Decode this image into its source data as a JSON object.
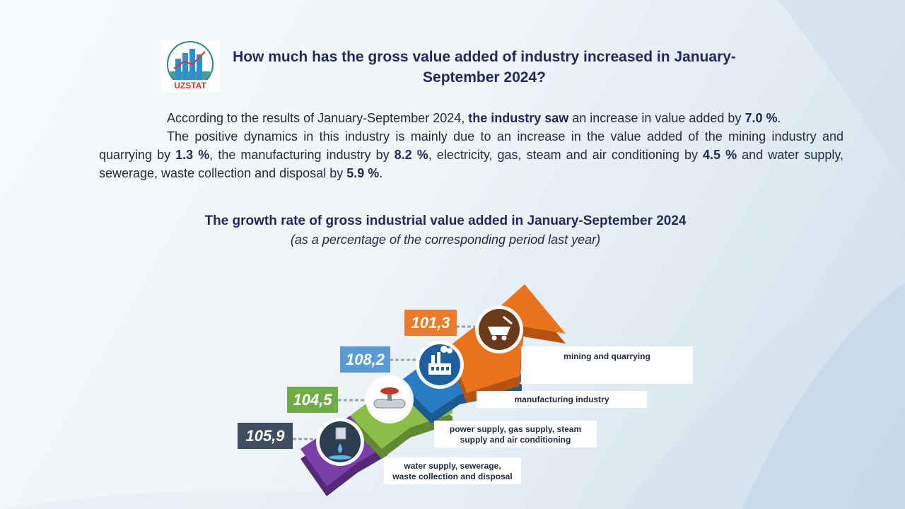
{
  "logo": {
    "text": "UZSTAT"
  },
  "title": "How much has the gross value added of industry increased in January-September 2024?",
  "paragraph1": {
    "t1": "According to the results of January-September 2024, ",
    "b1": "the industry saw",
    "t2": " an increase in value added by ",
    "b2": "7.0 %",
    "t3": "."
  },
  "paragraph2": {
    "t1": "The positive dynamics in this industry is mainly due to an increase in the value added of the mining industry and quarrying by ",
    "b1": "1.3 %",
    "t2": ", the manufacturing industry by ",
    "b2": "8.2 %",
    "t3": ", electricity, gas, steam and air conditioning by ",
    "b3": "4.5 %",
    "t4": " and water supply, sewerage, waste collection and disposal by ",
    "b4": "5.9 %",
    "t5": "."
  },
  "chart_data": {
    "type": "bar",
    "title": "The growth rate of gross industrial value added in January-September 2024",
    "subtitle": "(as a percentage of the corresponding period last year)",
    "categories": [
      "mining and quarrying",
      "manufacturing industry",
      "power supply, gas supply, steam supply and air conditioning",
      "water supply, sewerage, waste collection and disposal"
    ],
    "values": [
      101.3,
      108.2,
      104.5,
      105.9
    ],
    "value_labels": [
      "101,3",
      "108,2",
      "104,5",
      "105,9"
    ],
    "label_lines": [
      [
        "mining and quarrying"
      ],
      [
        "manufacturing industry"
      ],
      [
        "power supply, gas supply, steam",
        "supply and air conditioning"
      ],
      [
        "water supply, sewerage,",
        "waste collection and disposal"
      ]
    ],
    "icons": [
      "mine-cart-icon",
      "factory-icon",
      "pipe-valve-icon",
      "water-tap-icon"
    ],
    "colors": [
      "#e8731c",
      "#2a7bc4",
      "#8cbd4a",
      "#7a3fa8"
    ],
    "box_colors": [
      "#ea7b2a",
      "#5b9bd5",
      "#70ad47",
      "#3f4d61"
    ]
  }
}
